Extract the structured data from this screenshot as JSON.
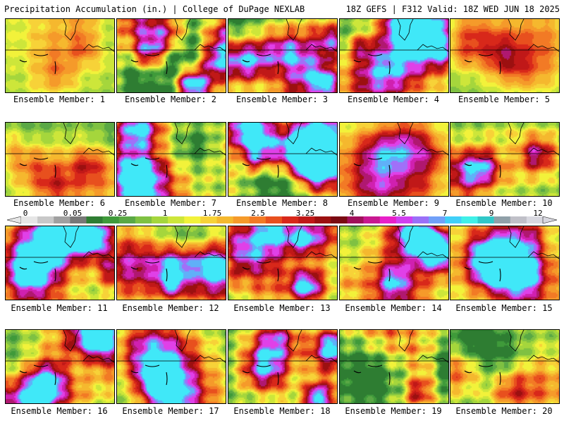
{
  "header": {
    "left_title": "Precipitation Accumulation (in.) | College of DuPage NEXLAB",
    "right_title": "18Z GEFS | F312 Valid: 18Z WED JUN 18 2025"
  },
  "legend": {
    "tick_labels": [
      "0",
      "0.05",
      "0.25",
      "1",
      "1.75",
      "2.5",
      "3.25",
      "4",
      "5.5",
      "7",
      "9",
      "12"
    ],
    "colors": [
      "#e6e6e6",
      "#c8c8c8",
      "#a0a0a0",
      "#787878",
      "#2e7d32",
      "#3f9a3a",
      "#5aa845",
      "#7fc142",
      "#a5d63c",
      "#cde63a",
      "#f2f23a",
      "#f7d238",
      "#f5b82e",
      "#f59a2a",
      "#f27a25",
      "#e8501e",
      "#d8281a",
      "#c01818",
      "#9c1010",
      "#7a0a12",
      "#a0105a",
      "#c81890",
      "#e820c8",
      "#d040f0",
      "#9a70f8",
      "#70a0f8",
      "#40d0f8",
      "#40f0e8",
      "#30c8c8",
      "#90a0a8",
      "#c0c0c8",
      "#d8d8e0"
    ]
  },
  "members": [
    {
      "label": "Ensemble Member: 1"
    },
    {
      "label": "Ensemble Member: 2"
    },
    {
      "label": "Ensemble Member: 3"
    },
    {
      "label": "Ensemble Member: 4"
    },
    {
      "label": "Ensemble Member: 5"
    },
    {
      "label": "Ensemble Member: 6"
    },
    {
      "label": "Ensemble Member: 7"
    },
    {
      "label": "Ensemble Member: 8"
    },
    {
      "label": "Ensemble Member: 9"
    },
    {
      "label": "Ensemble Member: 10"
    },
    {
      "label": "Ensemble Member: 11"
    },
    {
      "label": "Ensemble Member: 12"
    },
    {
      "label": "Ensemble Member: 13"
    },
    {
      "label": "Ensemble Member: 14"
    },
    {
      "label": "Ensemble Member: 15"
    },
    {
      "label": "Ensemble Member: 16"
    },
    {
      "label": "Ensemble Member: 17"
    },
    {
      "label": "Ensemble Member: 18"
    },
    {
      "label": "Ensemble Member: 19"
    },
    {
      "label": "Ensemble Member: 20"
    }
  ]
}
